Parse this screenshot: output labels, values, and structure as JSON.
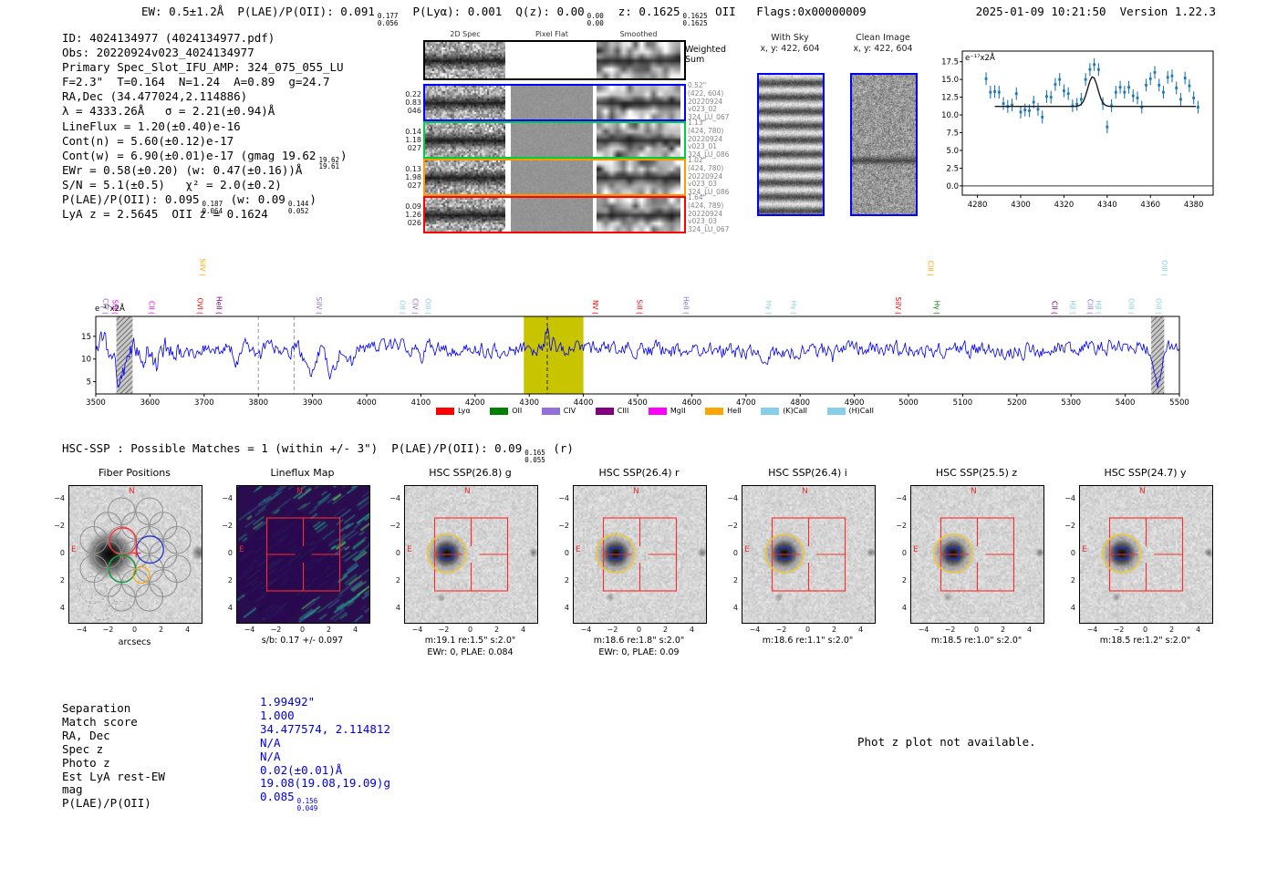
{
  "colors": {
    "value_blue": "#0000dd",
    "accent_red": "#ff2a2a",
    "marker_red": "#e03030",
    "spectrum_blue": "#0000ee",
    "point_blue": "#1f77b4",
    "highlight_yellow": "#c9c400",
    "row_borders": [
      "#000000",
      "#0000ff",
      "#00cc44",
      "#ff9900",
      "#ff0000"
    ],
    "yellow_aperture": "#f0c832",
    "blue_aperture": "#2233cc"
  },
  "header": {
    "segments": [
      {
        "t": "EW: 0.5±1.2Å  P(LAE)/P(OII): 0.091"
      },
      {
        "hi": "0.177",
        "lo": "0.056"
      },
      {
        "t": "  P(Lyα): 0.001  Q(z): 0.00"
      },
      {
        "hi": "0.00",
        "lo": "0.00"
      },
      {
        "t": "  z: 0.1625"
      },
      {
        "hi": "0.1625",
        "lo": "0.1625"
      },
      {
        "t": " OII   Flags:0x00000009"
      }
    ],
    "timestamp": "2025-01-09 10:21:50",
    "version": "Version 1.22.3"
  },
  "info": {
    "lines": [
      [
        {
          "t": "ID: 4024134977 (4024134977.pdf)"
        }
      ],
      [
        {
          "t": "Obs: 20220924v023_4024134977"
        }
      ],
      [
        {
          "t": "Primary Spec_Slot_IFU_AMP: 324_075_055_LU"
        }
      ],
      [
        {
          "t": "F=2.3\"  T=0.164  N=1.24  A=0.89  g=24.7"
        }
      ],
      [
        {
          "t": "RA,Dec (34.477024,2.114886)"
        }
      ],
      [
        {
          "t": "λ = 4333.26Å   σ = 2.21(±0.94)Å"
        }
      ],
      [
        {
          "t": "LineFlux = 1.20(±0.40)e-16"
        }
      ],
      [
        {
          "t": "Cont(n) = 5.60(±0.12)e-17"
        }
      ],
      [
        {
          "t": "Cont(w) = 6.90(±0.01)e-17 (gmag 19.62"
        },
        {
          "hi": "19.62",
          "lo": "19.61"
        },
        {
          "t": ")"
        }
      ],
      [
        {
          "t": "EWr = 0.58(±0.20) (w: 0.47(±0.16))Å"
        }
      ],
      [
        {
          "t": "S/N = 5.1(±0.5)   χ² = 2.0(±0.2)"
        }
      ],
      [
        {
          "t": "P(LAE)/P(OII): 0.095"
        },
        {
          "hi": "0.187",
          "lo": "0.064"
        },
        {
          "t": " (w: 0.09"
        },
        {
          "hi": "0.144",
          "lo": "0.052"
        },
        {
          "t": ")"
        }
      ],
      [
        {
          "t": "LyA z = 2.5645  OII z = 0.1624"
        }
      ]
    ]
  },
  "spec2d": {
    "headers": [
      "2D Spec",
      "Pixel Flat",
      "Smoothed"
    ],
    "weighted_label": "Weighted\nSum",
    "rows": [
      {
        "left": [
          "0.22",
          "0.83",
          "046"
        ],
        "right": [
          "0.52\"",
          "(422, 604)",
          "20220924",
          "v023_02",
          "324_LU_067"
        ],
        "border": "#0000ff"
      },
      {
        "left": [
          "0.14",
          "1.18",
          "027"
        ],
        "right": [
          "1.13\"",
          "(424, 780)",
          "20220924",
          "v023_01",
          "324_LU_086"
        ],
        "border": "#00cc44"
      },
      {
        "left": [
          "0.13",
          "1.98",
          "027"
        ],
        "right": [
          "1.02\"",
          "(424, 780)",
          "20220924",
          "v023_03",
          "324_LU_086"
        ],
        "border": "#ff9900"
      },
      {
        "left": [
          "0.09",
          "1.26",
          "026"
        ],
        "right": [
          "1.64\"",
          "(424, 789)",
          "20220924",
          "v023_03",
          "324_LU_067"
        ],
        "border": "#ff0000"
      }
    ]
  },
  "sky_panels": [
    {
      "title": "With Sky",
      "subtitle": "x, y: 422, 604",
      "kind": "sky"
    },
    {
      "title": "Clean Image",
      "subtitle": "x, y: 422, 604",
      "kind": "clean"
    }
  ],
  "hsc_line": {
    "segments": [
      {
        "t": "HSC-SSP : Possible Matches = 1 (within +/- 3\")  P(LAE)/P(OII): 0.09"
      },
      {
        "hi": "0.165",
        "lo": "0.055"
      },
      {
        "t": " (r)"
      }
    ]
  },
  "cutouts": [
    {
      "title": "Fiber Positions",
      "kind": "fiber",
      "sub1": "arcsecs",
      "sub2": ""
    },
    {
      "title": "Lineflux Map",
      "kind": "flux",
      "sub1": "s/b: 0.17 +/- 0.097",
      "sub2": ""
    },
    {
      "title": "HSC SSP(26.8) g",
      "kind": "hsc",
      "sub1": "m:19.1 re:1.5\" s:2.0\"",
      "sub2": "EWr: 0, PLAE: 0.084"
    },
    {
      "title": "HSC SSP(26.4) r",
      "kind": "hsc",
      "sub1": "m:18.6 re:1.8\" s:2.0\"",
      "sub2": "EWr: 0, PLAE: 0.09"
    },
    {
      "title": "HSC SSP(26.4) i",
      "kind": "hsc",
      "sub1": "m:18.6 re:1.1\" s:2.0\"",
      "sub2": ""
    },
    {
      "title": "HSC SSP(25.5) z",
      "kind": "hsc",
      "sub1": "m:18.5 re:1.0\" s:2.0\"",
      "sub2": ""
    },
    {
      "title": "HSC SSP(24.7) y",
      "kind": "hsc",
      "sub1": "m:18.5 re:1.2\" s:2.0\"",
      "sub2": ""
    }
  ],
  "cutout_axes": {
    "ticks": [
      "−4",
      "−2",
      "0",
      "2",
      "4"
    ],
    "tick_values": [
      -4,
      -2,
      0,
      2,
      4
    ],
    "compass_n": "N",
    "compass_e": "E"
  },
  "match_table": {
    "rows": [
      {
        "label": "Separation",
        "value": [
          {
            "t": "1.99492\""
          }
        ]
      },
      {
        "label": "Match score",
        "value": [
          {
            "t": "1.000"
          }
        ]
      },
      {
        "label": "RA, Dec",
        "value": [
          {
            "t": "34.477574, 2.114812"
          }
        ]
      },
      {
        "label": "Spec z",
        "value": [
          {
            "t": "N/A"
          }
        ]
      },
      {
        "label": "Photo z",
        "value": [
          {
            "t": "N/A"
          }
        ]
      },
      {
        "label": "Est LyA rest-EW",
        "value": [
          {
            "t": "0.02(±0.01)Å"
          }
        ]
      },
      {
        "label": "mag",
        "value": [
          {
            "t": "19.08(19.08,19.09)g"
          }
        ]
      },
      {
        "label": "P(LAE)/P(OII)",
        "value": [
          {
            "t": "0.085"
          },
          {
            "hi": "0.156",
            "lo": "0.049"
          }
        ]
      }
    ]
  },
  "photz_note": "Phot z plot not available.",
  "legend": [
    {
      "label": "Lyα",
      "color": "#ff0000"
    },
    {
      "label": "OII",
      "color": "#008000"
    },
    {
      "label": "CIV",
      "color": "#9370DB"
    },
    {
      "label": "CIII",
      "color": "#800080"
    },
    {
      "label": "MgII",
      "color": "#ff00ff"
    },
    {
      "label": "HeII",
      "color": "#ffa500"
    },
    {
      "label": "(K)CaII",
      "color": "#87CEEB"
    },
    {
      "label": "(H)CaII",
      "color": "#87CEEB"
    }
  ],
  "line_labels": [
    {
      "wave": 3518,
      "text": "CIV",
      "color": "#9370DB",
      "tall": false
    },
    {
      "wave": 3535,
      "text": "SiII",
      "color": "#ff00ff",
      "tall": false
    },
    {
      "wave": 3603,
      "text": "CII",
      "color": "#ff00ff",
      "tall": false
    },
    {
      "wave": 3692,
      "text": "OVI",
      "color": "#ff0000",
      "tall": false
    },
    {
      "wave": 3697,
      "text": "SiIV",
      "color": "#ffa500",
      "tall": true
    },
    {
      "wave": 3727,
      "text": "HeII",
      "color": "#800080",
      "tall": false
    },
    {
      "wave": 3912,
      "text": "SiIV",
      "color": "#9370DB",
      "tall": false
    },
    {
      "wave": 4066,
      "text": "OII",
      "color": "#87CEEB",
      "tall": false
    },
    {
      "wave": 4089,
      "text": "CIV",
      "color": "#9370DB",
      "tall": false
    },
    {
      "wave": 4113,
      "text": "OIII",
      "color": "#87CEEB",
      "tall": false
    },
    {
      "wave": 4422,
      "text": "NV",
      "color": "#ff0000",
      "tall": false
    },
    {
      "wave": 4503,
      "text": "SiII",
      "color": "#ff0000",
      "tall": false
    },
    {
      "wave": 4589,
      "text": "HeII",
      "color": "#9370DB",
      "tall": false
    },
    {
      "wave": 4742,
      "text": "Hγ",
      "color": "#87CEEB",
      "tall": false
    },
    {
      "wave": 4788,
      "text": "Hγ",
      "color": "#87CEEB",
      "tall": false
    },
    {
      "wave": 4981,
      "text": "SiIV",
      "color": "#ff0000",
      "tall": false
    },
    {
      "wave": 5040,
      "text": "CIII",
      "color": "#ffa500",
      "tall": true
    },
    {
      "wave": 5052,
      "text": "Hγ",
      "color": "#008000",
      "tall": false
    },
    {
      "wave": 5269,
      "text": "CII",
      "color": "#800080",
      "tall": false
    },
    {
      "wave": 5303,
      "text": "Hβ",
      "color": "#87CEEB",
      "tall": false
    },
    {
      "wave": 5335,
      "text": "CIII",
      "color": "#9370DB",
      "tall": false
    },
    {
      "wave": 5350,
      "text": "Hβ",
      "color": "#87CEEB",
      "tall": false
    },
    {
      "wave": 5411,
      "text": "OIII",
      "color": "#87CEEB",
      "tall": false
    },
    {
      "wave": 5461,
      "text": "OIII",
      "color": "#87CEEB",
      "tall": false
    },
    {
      "wave": 5472,
      "text": "OIII",
      "color": "#87CEEB",
      "tall": true
    }
  ],
  "chart_data": [
    {
      "id": "zoom_plot",
      "type": "scatter",
      "title": "",
      "ylabel": "e⁻¹⁷x2Å",
      "xlim": [
        4273,
        4389
      ],
      "ylim": [
        -1.3,
        19.0
      ],
      "xticks": [
        4280,
        4300,
        4320,
        4340,
        4360,
        4380
      ],
      "yticks": [
        "0.0",
        "2.5",
        "5.0",
        "7.5",
        "10.0",
        "12.5",
        "15.0",
        "17.5"
      ],
      "ytick_values": [
        0,
        2.5,
        5,
        7.5,
        10,
        12.5,
        15,
        17.5
      ],
      "yerr": 0.9,
      "fit": {
        "type": "gaussian",
        "baseline": 11.2,
        "amplitude": 4.2,
        "center": 4333.3,
        "sigma": 2.3,
        "range": [
          4288,
          4381
        ]
      },
      "points": [
        [
          4284,
          15.1
        ],
        [
          4286,
          13.2
        ],
        [
          4288,
          13.3
        ],
        [
          4290,
          13.2
        ],
        [
          4292,
          11.6
        ],
        [
          4294,
          11.2
        ],
        [
          4296,
          11.4
        ],
        [
          4298,
          13.0
        ],
        [
          4300,
          10.4
        ],
        [
          4302,
          10.7
        ],
        [
          4304,
          10.6
        ],
        [
          4306,
          11.8
        ],
        [
          4308,
          10.8
        ],
        [
          4310,
          9.7
        ],
        [
          4312,
          12.6
        ],
        [
          4314,
          12.5
        ],
        [
          4316,
          14.3
        ],
        [
          4318,
          15.0
        ],
        [
          4320,
          13.4
        ],
        [
          4322,
          13.0
        ],
        [
          4324,
          11.3
        ],
        [
          4326,
          11.5
        ],
        [
          4328,
          12.2
        ],
        [
          4330,
          15.0
        ],
        [
          4332,
          16.4
        ],
        [
          4334,
          17.1
        ],
        [
          4336,
          16.4
        ],
        [
          4338,
          11.6
        ],
        [
          4340,
          8.3
        ],
        [
          4342,
          11.3
        ],
        [
          4344,
          13.2
        ],
        [
          4346,
          13.9
        ],
        [
          4348,
          13.2
        ],
        [
          4350,
          13.9
        ],
        [
          4352,
          12.7
        ],
        [
          4354,
          12.4
        ],
        [
          4356,
          11.1
        ],
        [
          4358,
          14.2
        ],
        [
          4360,
          15.1
        ],
        [
          4362,
          16.0
        ],
        [
          4364,
          14.2
        ],
        [
          4366,
          13.2
        ],
        [
          4368,
          15.3
        ],
        [
          4370,
          15.5
        ],
        [
          4372,
          13.8
        ],
        [
          4374,
          12.2
        ],
        [
          4376,
          15.2
        ],
        [
          4378,
          14.1
        ],
        [
          4380,
          12.4
        ],
        [
          4382,
          11.1
        ]
      ]
    },
    {
      "id": "main_spectrum",
      "type": "line",
      "ylabel": "e⁻¹⁷x2Å",
      "xlim": [
        3500,
        5500
      ],
      "ylim": [
        2.3,
        19.4
      ],
      "xticks": [
        3500,
        3600,
        3700,
        3800,
        3900,
        4000,
        4100,
        4200,
        4300,
        4400,
        4500,
        4600,
        4700,
        4800,
        4900,
        5000,
        5100,
        5200,
        5300,
        5400,
        5500
      ],
      "yticks": [
        5,
        10,
        15
      ],
      "baseline": 12.15,
      "noise_amp": 1.55,
      "highlight_band": [
        4290,
        4400
      ],
      "dashed_black": 4333.26,
      "dashed_gray": [
        3800,
        3866
      ],
      "masked_bands": [
        [
          3538,
          3568
        ],
        [
          5448,
          5472
        ]
      ],
      "features": [
        {
          "x": 3512,
          "w": 4,
          "dy": 3.2
        },
        {
          "x": 3545,
          "w": 9,
          "dy": -7.0
        },
        {
          "x": 3584,
          "w": 5,
          "dy": -3.0
        },
        {
          "x": 3612,
          "w": 5,
          "dy": -3.6
        },
        {
          "x": 3682,
          "w": 6,
          "dy": -3.0
        },
        {
          "x": 3762,
          "w": 5,
          "dy": -2.6
        },
        {
          "x": 3802,
          "w": 4,
          "dy": -2.0
        },
        {
          "x": 3895,
          "w": 8,
          "dy": -6.0
        },
        {
          "x": 3935,
          "w": 8,
          "dy": -6.5
        },
        {
          "x": 3970,
          "w": 6,
          "dy": -4.0
        },
        {
          "x": 4101,
          "w": 5,
          "dy": -2.4
        },
        {
          "x": 4305,
          "w": 4,
          "dy": -2.0
        },
        {
          "x": 4333,
          "w": 3,
          "dy": 4.6
        },
        {
          "x": 4346,
          "w": 3,
          "dy": 2.0
        },
        {
          "x": 4861,
          "w": 4,
          "dy": -1.6
        },
        {
          "x": 5462,
          "w": 8,
          "dy": -7.0
        }
      ]
    }
  ]
}
